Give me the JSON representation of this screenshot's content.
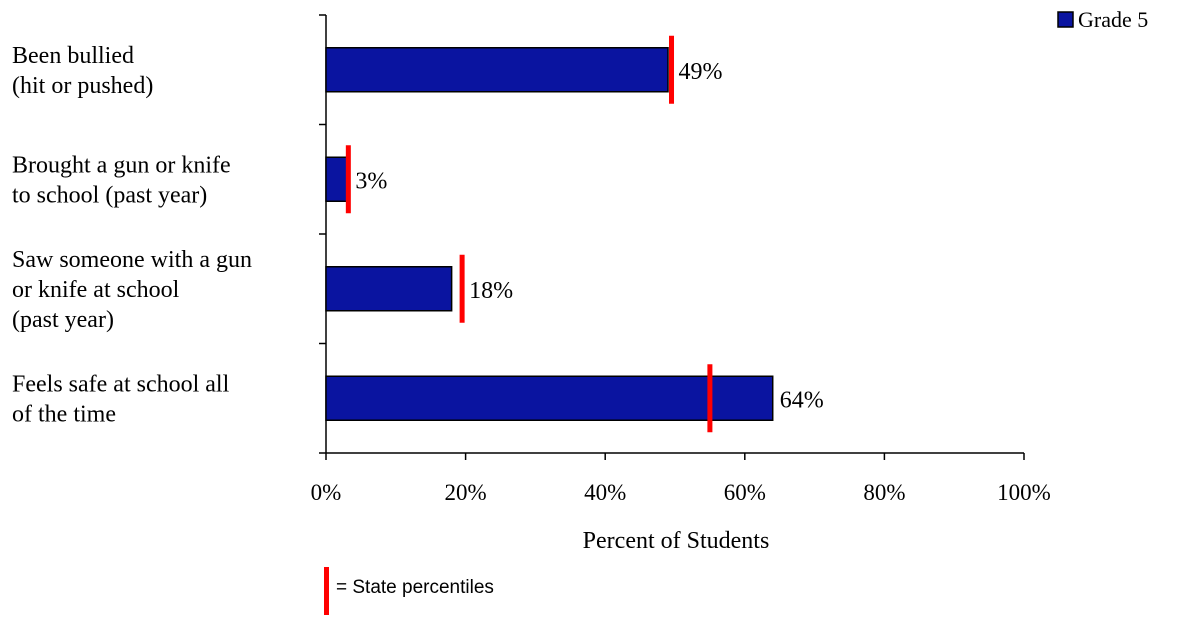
{
  "chart_data": {
    "type": "bar",
    "orientation": "horizontal",
    "categories": [
      [
        "Been bullied",
        "(hit or pushed)"
      ],
      [
        "Brought a gun or knife",
        "to school (past year)"
      ],
      [
        "Saw someone with a gun",
        "or knife at school",
        "(past year)"
      ],
      [
        "Feels safe at school all",
        "of the time"
      ]
    ],
    "series": [
      {
        "name": "Grade 5",
        "values": [
          49,
          3,
          18,
          64
        ],
        "color": "#0a14a0"
      }
    ],
    "value_labels": [
      "49%",
      "3%",
      "18%",
      "64%"
    ],
    "state_percentiles": [
      49.5,
      3.2,
      19.5,
      55
    ],
    "state_marker_color": "#ff0000",
    "xlabel": "Percent of Students",
    "xlim": [
      0,
      100
    ],
    "xticks": [
      0,
      20,
      40,
      60,
      80,
      100
    ],
    "xtick_labels": [
      "0%",
      "20%",
      "40%",
      "60%",
      "80%",
      "100%"
    ],
    "grid": false,
    "legend": {
      "placement": "top-right",
      "entries": [
        "Grade 5"
      ]
    },
    "state_legend": {
      "label": "= State percentiles"
    }
  }
}
